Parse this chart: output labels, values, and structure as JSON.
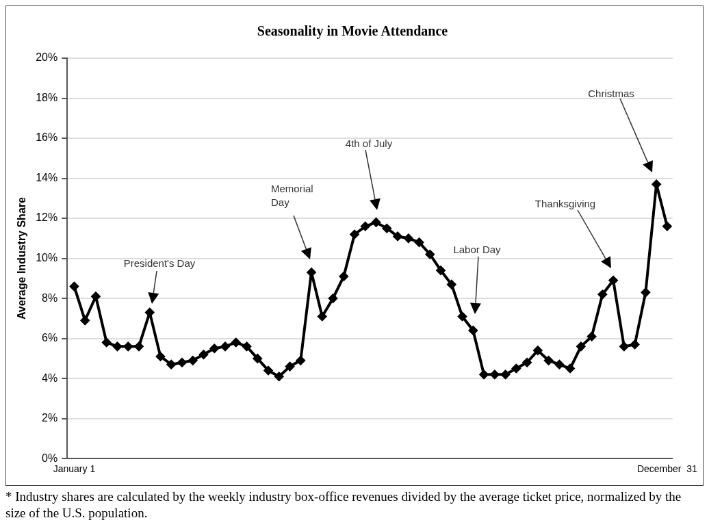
{
  "chart_data": {
    "type": "line",
    "title": "Seasonality in Movie Attendance",
    "ylabel": "Average Industry Share",
    "categories": [
      "January 1",
      null,
      null,
      null,
      null,
      null,
      null,
      null,
      null,
      null,
      null,
      null,
      null,
      null,
      null,
      null,
      null,
      null,
      null,
      null,
      null,
      null,
      null,
      null,
      null,
      null,
      null,
      null,
      null,
      null,
      null,
      null,
      null,
      null,
      null,
      null,
      null,
      null,
      null,
      null,
      null,
      null,
      null,
      null,
      null,
      null,
      null,
      null,
      null,
      null,
      null,
      null,
      null,
      null,
      null,
      "December  31"
    ],
    "series": [
      {
        "color": "#000000",
        "values": [
          8.6,
          6.9,
          8.1,
          5.8,
          5.6,
          5.6,
          5.6,
          7.3,
          5.1,
          4.7,
          4.8,
          4.9,
          5.2,
          5.5,
          5.6,
          5.8,
          5.6,
          5.0,
          4.4,
          4.1,
          4.6,
          4.9,
          9.3,
          7.1,
          8.0,
          9.1,
          11.2,
          11.6,
          11.8,
          11.5,
          11.1,
          11.0,
          10.8,
          10.2,
          9.4,
          8.7,
          7.1,
          6.4,
          4.2,
          4.2,
          4.2,
          4.5,
          4.8,
          5.4,
          4.9,
          4.7,
          4.5,
          5.6,
          6.1,
          8.2,
          8.9,
          5.6,
          5.7,
          8.3,
          13.7,
          11.6
        ]
      }
    ],
    "ylim": [
      0,
      20
    ],
    "yticks": [
      {
        "value": 0,
        "label": "0%"
      },
      {
        "value": 2,
        "label": "2%"
      },
      {
        "value": 4,
        "label": "4%"
      },
      {
        "value": 6,
        "label": "6%"
      },
      {
        "value": 8,
        "label": "8%"
      },
      {
        "value": 10,
        "label": "10%"
      },
      {
        "value": 12,
        "label": "12%"
      },
      {
        "value": 14,
        "label": "14%"
      },
      {
        "value": 16,
        "label": "16%"
      },
      {
        "value": 18,
        "label": "18%"
      },
      {
        "value": 20,
        "label": "20%"
      }
    ],
    "grid": "y",
    "legend": false,
    "marker": "diamond",
    "line_style": "solid",
    "annotations": [
      "President's Day",
      "Memorial Day",
      "4th of July",
      "Labor Day",
      "Thanksgiving",
      "Christmas",
      "* Industry shares are calculated by the weekly industry box-office revenues divided by the average ticket price, normalized by the size of the U.S. population."
    ]
  }
}
